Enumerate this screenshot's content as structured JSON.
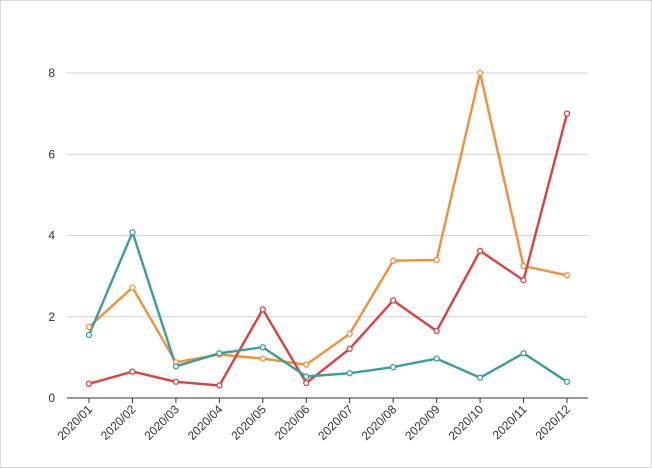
{
  "chart_data": {
    "type": "line",
    "title": "",
    "xlabel": "",
    "ylabel": "",
    "ylim": [
      0,
      8
    ],
    "yticks": [
      "0",
      "2",
      "4",
      "6",
      "8"
    ],
    "categories": [
      "2020/01",
      "2020/02",
      "2020/03",
      "2020/04",
      "2020/05",
      "2020/06",
      "2020/07",
      "2020/08",
      "2020/09",
      "2020/10",
      "2020/11",
      "2020/12"
    ],
    "grid": "horizontal",
    "legend": "none",
    "series": [
      {
        "color": "#f0913a",
        "values": [
          1.75,
          2.72,
          0.88,
          1.07,
          0.97,
          0.82,
          1.58,
          3.38,
          3.4,
          8.0,
          3.25,
          3.02
        ]
      },
      {
        "color": "#d9433f",
        "values": [
          0.35,
          0.65,
          0.4,
          0.31,
          2.18,
          0.37,
          1.21,
          2.4,
          1.65,
          3.62,
          2.9,
          7.0
        ]
      },
      {
        "color": "#3a9e9c",
        "values": [
          1.55,
          4.08,
          0.78,
          1.1,
          1.25,
          0.53,
          0.61,
          0.76,
          0.97,
          0.5,
          1.1,
          0.4
        ]
      }
    ]
  }
}
